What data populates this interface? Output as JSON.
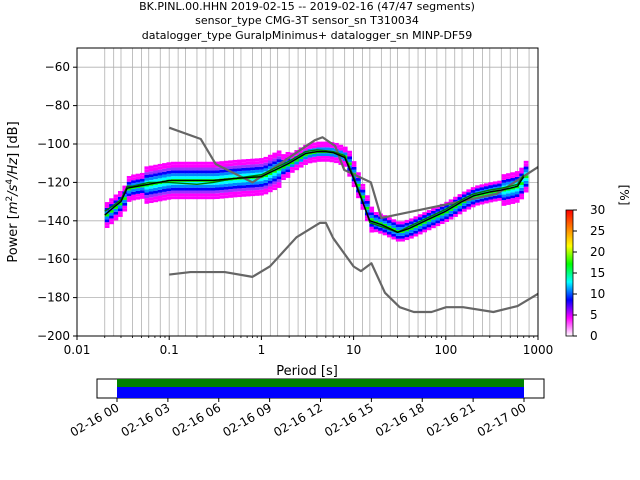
{
  "title_lines": [
    "BK.PINL.00.HHN   2019-02-15 -- 2019-02-16  (47/47 segments)",
    "sensor_type CMG-3T sensor_sn T310034",
    "datalogger_type GuralpMinimus+ datalogger_sn MINP-DF59"
  ],
  "chart_data": {
    "type": "heatmap",
    "xlabel": "Period [s]",
    "ylabel_parts": [
      "Power [",
      "m",
      "2",
      "/s",
      "4",
      "/Hz",
      "] [dB]"
    ],
    "x_scale": "log",
    "xlim": [
      0.01,
      1000
    ],
    "ylim": [
      -200,
      -50
    ],
    "x_ticks": [
      {
        "value": 0.01,
        "label": "0.01"
      },
      {
        "value": 0.1,
        "label": "0.1"
      },
      {
        "value": 1,
        "label": "1"
      },
      {
        "value": 10,
        "label": "10"
      },
      {
        "value": 100,
        "label": "100"
      },
      {
        "value": 1000,
        "label": "1000"
      }
    ],
    "y_ticks": [
      {
        "value": -60,
        "label": "−60"
      },
      {
        "value": -80,
        "label": "−80"
      },
      {
        "value": -100,
        "label": "−100"
      },
      {
        "value": -120,
        "label": "−120"
      },
      {
        "value": -140,
        "label": "−140"
      },
      {
        "value": -160,
        "label": "−160"
      },
      {
        "value": -180,
        "label": "−180"
      },
      {
        "value": -200,
        "label": "−200"
      }
    ],
    "grid": true,
    "grid_periods": [
      0.02,
      0.025,
      0.03,
      0.04,
      0.05,
      0.06,
      0.08,
      0.1,
      0.125,
      0.15,
      0.2,
      0.25,
      0.3,
      0.4,
      0.5,
      0.6,
      0.8,
      1,
      1.25,
      1.5,
      2,
      2.5,
      3,
      4,
      5,
      6,
      8,
      10,
      12.5,
      15,
      20,
      25,
      30,
      40,
      50,
      60,
      80,
      100,
      125,
      150,
      200,
      250,
      300,
      400,
      500,
      600,
      800
    ],
    "high_noise_model": {
      "x": [
        0.1,
        0.22,
        0.32,
        0.8,
        3.8,
        4.6,
        6.3,
        7.9,
        15.4,
        20,
        354.8,
        1000
      ],
      "y": [
        -91.5,
        -97.4,
        -110.5,
        -120,
        -98,
        -96.5,
        -101,
        -113.5,
        -120,
        -138.5,
        -126,
        -112
      ]
    },
    "low_noise_model": {
      "x": [
        0.1,
        0.17,
        0.4,
        0.8,
        1.24,
        2.4,
        4.3,
        5,
        6,
        10,
        12,
        15.6,
        21.9,
        31.6,
        45,
        70,
        101,
        154,
        328,
        600,
        1000
      ],
      "y": [
        -168,
        -166.7,
        -166.7,
        -169.2,
        -163.7,
        -148.6,
        -141.1,
        -141.1,
        -149,
        -163.8,
        -166.2,
        -162.1,
        -177.5,
        -185,
        -187.5,
        -187.5,
        -185,
        -185,
        -187.5,
        -184.4,
        -178
      ]
    },
    "median": {
      "x": [
        0.02,
        0.025,
        0.03,
        0.035,
        0.04,
        0.06,
        0.1,
        0.2,
        0.3,
        0.5,
        1,
        2,
        3,
        4,
        5,
        6,
        8,
        10,
        12,
        15,
        20,
        30,
        40,
        60,
        100,
        150,
        200,
        300,
        400,
        500,
        600,
        700
      ],
      "y": [
        -137,
        -133,
        -130,
        -123,
        -122.5,
        -121,
        -119,
        -119,
        -119,
        -118,
        -117,
        -110,
        -105,
        -104,
        -104,
        -104.5,
        -107,
        -118,
        -128,
        -140,
        -142,
        -146,
        -144,
        -140,
        -135,
        -130,
        -127,
        -125,
        -124,
        -123,
        -122,
        -117
      ]
    },
    "mode": {
      "x": [
        0.02,
        0.025,
        0.03,
        0.035,
        0.04,
        0.06,
        0.1,
        0.2,
        0.3,
        0.5,
        1,
        2,
        3,
        4,
        5,
        6,
        8,
        10,
        12,
        15,
        20,
        30,
        40,
        60,
        100,
        150,
        200,
        300,
        400,
        500,
        600,
        700
      ],
      "y": [
        -135,
        -132,
        -129,
        -122,
        -122,
        -120,
        -120,
        -121,
        -120,
        -118,
        -116,
        -109,
        -104,
        -103,
        -103.5,
        -104,
        -106,
        -117,
        -127,
        -141,
        -143,
        -146,
        -143,
        -139,
        -134,
        -129,
        -126,
        -124,
        -123,
        -122,
        -121,
        -116
      ]
    },
    "colorbar": {
      "label": "[%]",
      "min": 0,
      "max": 30,
      "ticks": [
        {
          "value": 0,
          "label": "0"
        },
        {
          "value": 5,
          "label": "5"
        },
        {
          "value": 10,
          "label": "10"
        },
        {
          "value": 15,
          "label": "15"
        },
        {
          "value": 20,
          "label": "20"
        },
        {
          "value": 25,
          "label": "25"
        },
        {
          "value": 30,
          "label": "30"
        }
      ],
      "colors": [
        "#ffffff",
        "#ff00ff",
        "#0000ff",
        "#00ffff",
        "#00ff00",
        "#ffff00",
        "#ff7f00",
        "#ff0000"
      ]
    },
    "timeline": {
      "ticks": [
        "02-16 00",
        "02-16 03",
        "02-16 06",
        "02-16 09",
        "02-16 12",
        "02-16 15",
        "02-16 18",
        "02-16 21",
        "02-17 00"
      ],
      "coverage_color": "#0000ff",
      "data_color": "#008000"
    }
  }
}
